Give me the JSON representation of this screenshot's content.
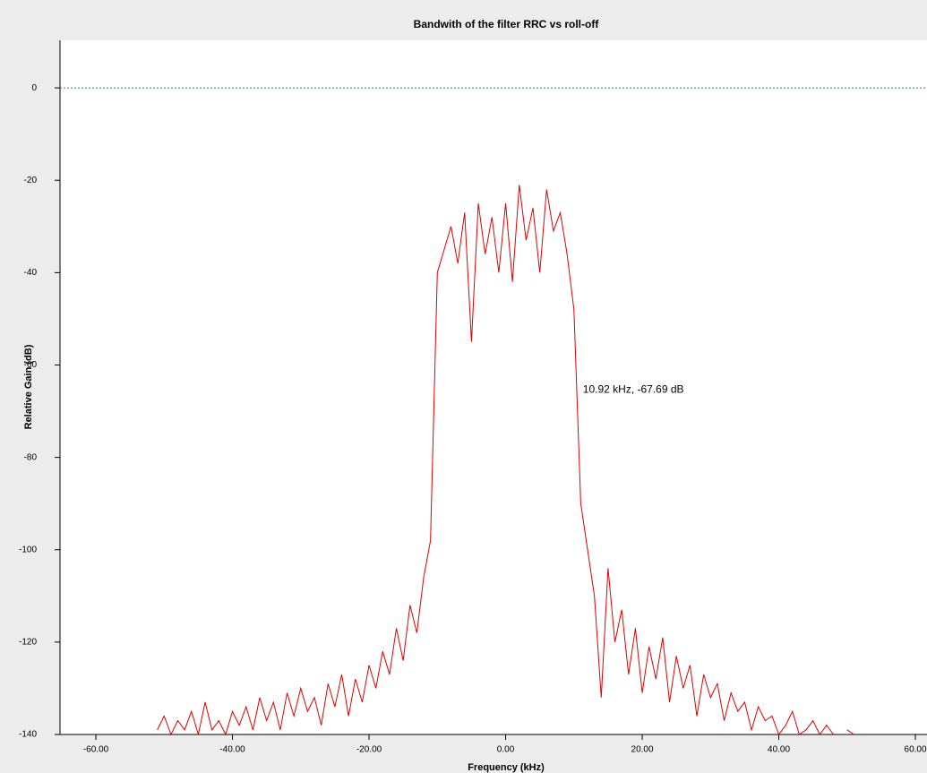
{
  "chart_data": {
    "type": "line",
    "title": "Bandwith of the filter RRC vs roll-off",
    "x_label": "Frequency (kHz)",
    "y_label": "Relative Gain (dB)",
    "xlim": [
      -65.25,
      61.7
    ],
    "ylim": [
      -140,
      10.3
    ],
    "xticks": [
      {
        "value": -60,
        "label": "-60.00"
      },
      {
        "value": -40,
        "label": "-40.00"
      },
      {
        "value": -20,
        "label": "-20.00"
      },
      {
        "value": 0,
        "label": "0.00"
      },
      {
        "value": 20,
        "label": "20.00"
      },
      {
        "value": 40,
        "label": "40.00"
      },
      {
        "value": 60,
        "label": "60.00"
      }
    ],
    "yticks": [
      0,
      -20,
      -40,
      -60,
      -80,
      -100,
      -120,
      -140
    ],
    "reference_line": {
      "value": 0,
      "color": "#2a7f8f"
    },
    "marker": {
      "x": 10.92,
      "y": -67.69,
      "label": "10.92 kHz, -67.69 dB",
      "color": "#7a1010"
    },
    "x": [
      -55,
      -54,
      -53,
      -52,
      -51,
      -50,
      -49,
      -48,
      -47,
      -46,
      -45,
      -44,
      -43,
      -42,
      -41,
      -40,
      -39,
      -38,
      -37,
      -36,
      -35,
      -34,
      -33,
      -32,
      -31,
      -30,
      -29,
      -28,
      -27,
      -26,
      -25,
      -24,
      -23,
      -22,
      -21,
      -20,
      -19,
      -18,
      -17,
      -16,
      -15,
      -14,
      -13,
      -12,
      -11,
      -10,
      -9,
      -8,
      -7,
      -6,
      -5,
      -4,
      -3,
      -2,
      -1,
      0,
      1,
      2,
      3,
      4,
      5,
      6,
      7,
      8,
      9,
      10,
      11,
      12,
      13,
      14,
      15,
      16,
      17,
      18,
      19,
      20,
      21,
      22,
      23,
      24,
      25,
      26,
      27,
      28,
      29,
      30,
      31,
      32,
      33,
      34,
      35,
      36,
      37,
      38,
      39,
      40,
      41,
      42,
      43,
      44,
      45,
      46,
      47,
      48,
      49,
      50,
      51,
      52,
      53,
      54,
      55
    ],
    "series": [
      {
        "name": "Gain",
        "color": "#e00000",
        "values": [
          -140,
          null,
          null,
          null,
          -139,
          -136,
          -140,
          -137,
          -139,
          -135,
          -140,
          -133,
          -139,
          -137,
          -140,
          -135,
          -138,
          -134,
          -139,
          -132,
          -137,
          -133,
          -139,
          -131,
          -136,
          -130,
          -135,
          -132,
          -138,
          -129,
          -134,
          -127,
          -136,
          -128,
          -133,
          -125,
          -130,
          -122,
          -127,
          -117,
          -124,
          -112,
          -118,
          -106,
          -98,
          -40,
          -35,
          -30,
          -38,
          -27,
          -55,
          -25,
          -36,
          -28,
          -40,
          -25,
          -42,
          -21,
          -33,
          -26,
          -40,
          -22,
          -31,
          -27,
          -36,
          -48,
          -90,
          -100,
          -110,
          -132,
          -104,
          -120,
          -113,
          -127,
          -117,
          -131,
          -121,
          -128,
          -119,
          -133,
          -123,
          -130,
          -125,
          -136,
          -127,
          -132,
          -129,
          -137,
          -131,
          -135,
          -133,
          -139,
          -134,
          -137,
          -136,
          -140,
          -138,
          -135,
          -140,
          -139,
          -137,
          -140,
          -138,
          -140,
          null,
          -139,
          -140,
          null,
          -139,
          null,
          null
        ]
      }
    ]
  }
}
